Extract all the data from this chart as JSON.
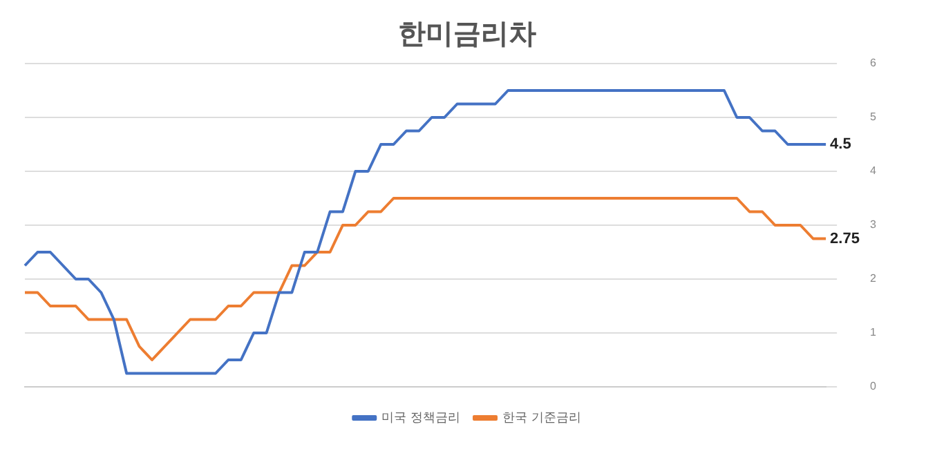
{
  "chart_data": {
    "type": "line",
    "title": "한미금리차",
    "categories": [
      null,
      null,
      null,
      null,
      null,
      null,
      null,
      null,
      null,
      null,
      null,
      null,
      null,
      null,
      null,
      null,
      null,
      null,
      null,
      null,
      null,
      null,
      null,
      null,
      null,
      null,
      null,
      null,
      null,
      null,
      null,
      null,
      null,
      null,
      null,
      null,
      null,
      null,
      null,
      null,
      null,
      null,
      null,
      null,
      null,
      null,
      null,
      null,
      null,
      null,
      null,
      null,
      null,
      null,
      null,
      null,
      null,
      null,
      null,
      null,
      null,
      null,
      null,
      null
    ],
    "series": [
      {
        "name": "미국 정책금리",
        "color": "#4472c4",
        "values": [
          2.25,
          2.5,
          2.5,
          2.25,
          2.0,
          2.0,
          1.75,
          1.25,
          0.25,
          0.25,
          0.25,
          0.25,
          0.25,
          0.25,
          0.25,
          0.25,
          0.5,
          0.5,
          1.0,
          1.0,
          1.75,
          1.75,
          2.5,
          2.5,
          3.25,
          3.25,
          4.0,
          4.0,
          4.5,
          4.5,
          4.75,
          4.75,
          5.0,
          5.0,
          5.25,
          5.25,
          5.25,
          5.25,
          5.5,
          5.5,
          5.5,
          5.5,
          5.5,
          5.5,
          5.5,
          5.5,
          5.5,
          5.5,
          5.5,
          5.5,
          5.5,
          5.5,
          5.5,
          5.5,
          5.5,
          5.5,
          5.0,
          5.0,
          4.75,
          4.75,
          4.5,
          4.5,
          4.5,
          4.5
        ],
        "value_labels": [
          null,
          null,
          null,
          null,
          null,
          null,
          null,
          null,
          null,
          null,
          null,
          null,
          null,
          null,
          null,
          null,
          null,
          null,
          null,
          null,
          null,
          null,
          null,
          null,
          null,
          null,
          null,
          null,
          null,
          null,
          null,
          null,
          null,
          null,
          null,
          null,
          null,
          null,
          null,
          null,
          null,
          null,
          null,
          null,
          null,
          null,
          null,
          null,
          null,
          null,
          null,
          null,
          null,
          null,
          null,
          null,
          null,
          null,
          null,
          null,
          null,
          null,
          null,
          "4.5"
        ]
      },
      {
        "name": "한국 기준금리",
        "color": "#ed7d31",
        "values": [
          1.75,
          1.75,
          1.5,
          1.5,
          1.5,
          1.25,
          1.25,
          1.25,
          1.25,
          0.75,
          0.5,
          0.75,
          1.0,
          1.25,
          1.25,
          1.25,
          1.5,
          1.5,
          1.75,
          1.75,
          1.75,
          2.25,
          2.25,
          2.5,
          2.5,
          3.0,
          3.0,
          3.25,
          3.25,
          3.5,
          3.5,
          3.5,
          3.5,
          3.5,
          3.5,
          3.5,
          3.5,
          3.5,
          3.5,
          3.5,
          3.5,
          3.5,
          3.5,
          3.5,
          3.5,
          3.5,
          3.5,
          3.5,
          3.5,
          3.5,
          3.5,
          3.5,
          3.5,
          3.5,
          3.5,
          3.5,
          3.5,
          3.25,
          3.25,
          3.0,
          3.0,
          3.0,
          2.75,
          2.75
        ],
        "value_labels": [
          null,
          null,
          null,
          null,
          null,
          null,
          null,
          null,
          null,
          null,
          null,
          null,
          null,
          null,
          null,
          null,
          null,
          null,
          null,
          null,
          null,
          null,
          null,
          null,
          null,
          null,
          null,
          null,
          null,
          null,
          null,
          null,
          null,
          null,
          null,
          null,
          null,
          null,
          null,
          null,
          null,
          null,
          null,
          null,
          null,
          null,
          null,
          null,
          null,
          null,
          null,
          null,
          null,
          null,
          null,
          null,
          null,
          null,
          null,
          null,
          null,
          null,
          null,
          "2.75"
        ]
      }
    ],
    "ylim": [
      0,
      6
    ],
    "yticks": [
      0,
      1,
      2,
      3,
      4,
      5,
      6
    ],
    "grid": "y",
    "legend": "bottom",
    "marker": "none",
    "line_style": "solid",
    "tick_labels": "y"
  }
}
